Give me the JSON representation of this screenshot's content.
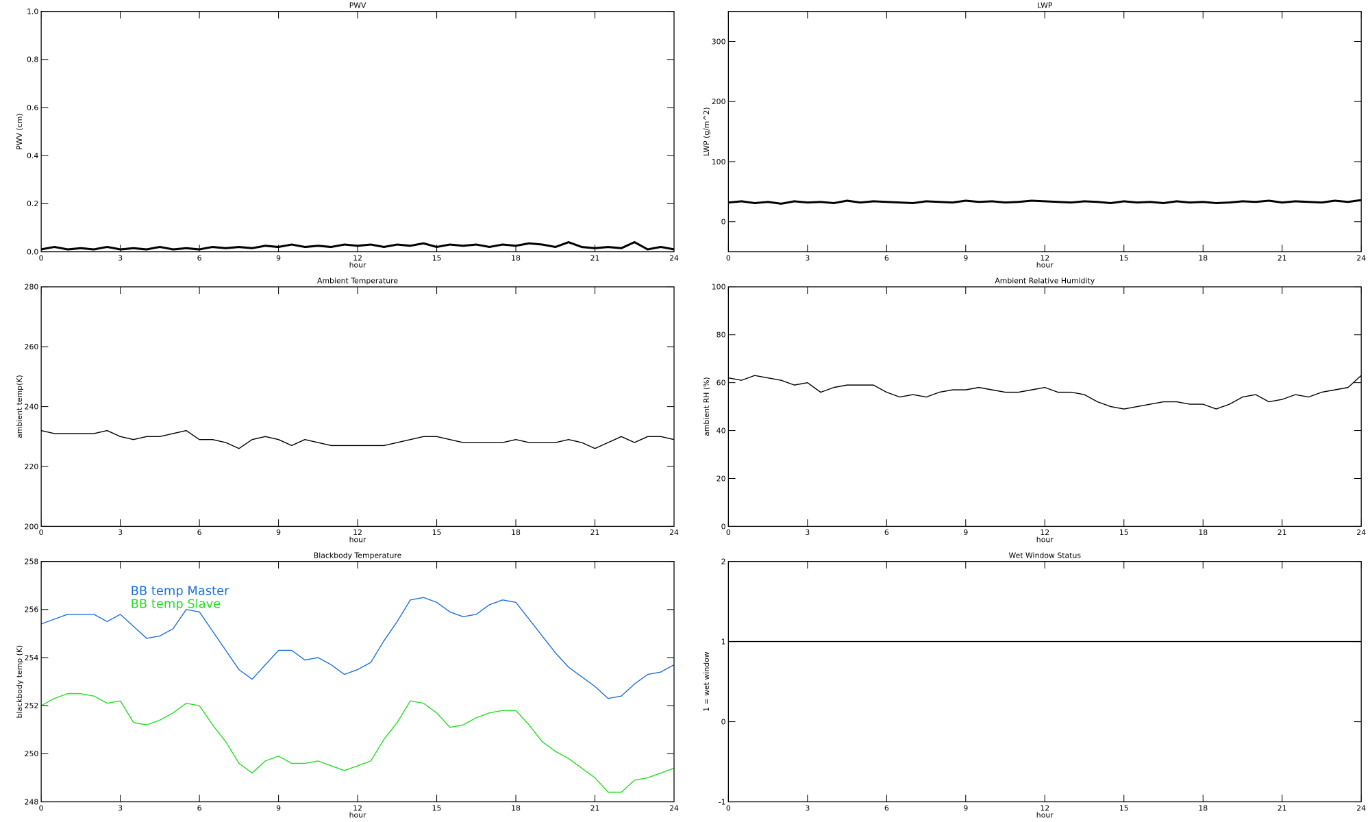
{
  "chart_data": [
    {
      "type": "line",
      "title": "PWV",
      "xlabel": "hour",
      "ylabel": "PWV (cm)",
      "xlim": [
        0,
        24
      ],
      "xticks": [
        0,
        3,
        6,
        9,
        12,
        15,
        18,
        21,
        24
      ],
      "ylim": [
        0,
        1
      ],
      "yticks": [
        {
          "value": 0,
          "label": "0.0"
        },
        {
          "value": 0.2,
          "label": "0.2"
        },
        {
          "value": 0.4,
          "label": "0.4"
        },
        {
          "value": 0.6,
          "label": "0.6"
        },
        {
          "value": 0.8,
          "label": "0.8"
        },
        {
          "value": 1,
          "label": "1.0"
        }
      ],
      "x": [
        0,
        0.5,
        1,
        1.5,
        2,
        2.5,
        3,
        3.5,
        4,
        4.5,
        5,
        5.5,
        6,
        6.5,
        7,
        7.5,
        8,
        8.5,
        9,
        9.5,
        10,
        10.5,
        11,
        11.5,
        12,
        12.5,
        13,
        13.5,
        14,
        14.5,
        15,
        15.5,
        16,
        16.5,
        17,
        17.5,
        18,
        18.5,
        19,
        19.5,
        20,
        20.5,
        21,
        21.5,
        22,
        22.5,
        23,
        23.5,
        24
      ],
      "series": [
        {
          "color": "#000000",
          "values": [
            0.01,
            0.02,
            0.01,
            0.015,
            0.01,
            0.02,
            0.01,
            0.015,
            0.01,
            0.02,
            0.01,
            0.015,
            0.01,
            0.02,
            0.015,
            0.02,
            0.015,
            0.025,
            0.02,
            0.03,
            0.02,
            0.025,
            0.02,
            0.03,
            0.025,
            0.03,
            0.02,
            0.03,
            0.025,
            0.035,
            0.02,
            0.03,
            0.025,
            0.03,
            0.02,
            0.03,
            0.025,
            0.035,
            0.03,
            0.02,
            0.04,
            0.02,
            0.015,
            0.02,
            0.015,
            0.04,
            0.01,
            0.02,
            0.01
          ]
        }
      ]
    },
    {
      "type": "line",
      "title": "LWP",
      "xlabel": "hour",
      "ylabel": "LWP (g/m^2)",
      "xlim": [
        0,
        24
      ],
      "xticks": [
        0,
        3,
        6,
        9,
        12,
        15,
        18,
        21,
        24
      ],
      "ylim": [
        -50,
        350
      ],
      "yticks": [
        0,
        100,
        200,
        300
      ],
      "x": [
        0,
        0.5,
        1,
        1.5,
        2,
        2.5,
        3,
        3.5,
        4,
        4.5,
        5,
        5.5,
        6,
        6.5,
        7,
        7.5,
        8,
        8.5,
        9,
        9.5,
        10,
        10.5,
        11,
        11.5,
        12,
        12.5,
        13,
        13.5,
        14,
        14.5,
        15,
        15.5,
        16,
        16.5,
        17,
        17.5,
        18,
        18.5,
        19,
        19.5,
        20,
        20.5,
        21,
        21.5,
        22,
        22.5,
        23,
        23.5,
        24
      ],
      "series": [
        {
          "color": "#000000",
          "values": [
            32,
            34,
            31,
            33,
            30,
            34,
            32,
            33,
            31,
            35,
            32,
            34,
            33,
            32,
            31,
            34,
            33,
            32,
            35,
            33,
            34,
            32,
            33,
            35,
            34,
            33,
            32,
            34,
            33,
            31,
            34,
            32,
            33,
            31,
            34,
            32,
            33,
            31,
            32,
            34,
            33,
            35,
            32,
            34,
            33,
            32,
            35,
            33,
            36
          ]
        }
      ]
    },
    {
      "type": "line",
      "title": "Ambient Temperature",
      "xlabel": "hour",
      "ylabel": "ambient temp(K)",
      "xlim": [
        0,
        24
      ],
      "xticks": [
        0,
        3,
        6,
        9,
        12,
        15,
        18,
        21,
        24
      ],
      "ylim": [
        200,
        280
      ],
      "yticks": [
        200,
        220,
        240,
        260,
        280
      ],
      "x": [
        0,
        0.5,
        1,
        1.5,
        2,
        2.5,
        3,
        3.5,
        4,
        4.5,
        5,
        5.5,
        6,
        6.5,
        7,
        7.5,
        8,
        8.5,
        9,
        9.5,
        10,
        10.5,
        11,
        11.5,
        12,
        12.5,
        13,
        13.5,
        14,
        14.5,
        15,
        15.5,
        16,
        16.5,
        17,
        17.5,
        18,
        18.5,
        19,
        19.5,
        20,
        20.5,
        21,
        21.5,
        22,
        22.5,
        23,
        23.5,
        24
      ],
      "series": [
        {
          "color": "#000000",
          "values": [
            232,
            231,
            231,
            231,
            231,
            232,
            230,
            229,
            230,
            230,
            231,
            232,
            229,
            229,
            228,
            226,
            229,
            230,
            229,
            227,
            229,
            228,
            227,
            227,
            227,
            227,
            227,
            228,
            229,
            230,
            230,
            229,
            228,
            228,
            228,
            228,
            229,
            228,
            228,
            228,
            229,
            228,
            226,
            228,
            230,
            228,
            230,
            230,
            229
          ]
        }
      ]
    },
    {
      "type": "line",
      "title": "Ambient Relative Humidity",
      "xlabel": "hour",
      "ylabel": "ambient RH (%)",
      "xlim": [
        0,
        24
      ],
      "xticks": [
        0,
        3,
        6,
        9,
        12,
        15,
        18,
        21,
        24
      ],
      "ylim": [
        0,
        100
      ],
      "yticks": [
        0,
        20,
        40,
        60,
        80,
        100
      ],
      "x": [
        0,
        0.5,
        1,
        1.5,
        2,
        2.5,
        3,
        3.5,
        4,
        4.5,
        5,
        5.5,
        6,
        6.5,
        7,
        7.5,
        8,
        8.5,
        9,
        9.5,
        10,
        10.5,
        11,
        11.5,
        12,
        12.5,
        13,
        13.5,
        14,
        14.5,
        15,
        15.5,
        16,
        16.5,
        17,
        17.5,
        18,
        18.5,
        19,
        19.5,
        20,
        20.5,
        21,
        21.5,
        22,
        22.5,
        23,
        23.5,
        24
      ],
      "series": [
        {
          "color": "#000000",
          "values": [
            62,
            61,
            63,
            62,
            61,
            59,
            60,
            56,
            58,
            59,
            59,
            59,
            56,
            54,
            55,
            54,
            56,
            57,
            57,
            58,
            57,
            56,
            56,
            57,
            58,
            56,
            56,
            55,
            52,
            50,
            49,
            50,
            51,
            52,
            52,
            51,
            51,
            49,
            51,
            54,
            55,
            52,
            53,
            55,
            54,
            56,
            57,
            58,
            63
          ]
        }
      ]
    },
    {
      "type": "line",
      "title": "Blackbody Temperature",
      "xlabel": "hour",
      "ylabel": "blackbody temp (K)",
      "xlim": [
        0,
        24
      ],
      "xticks": [
        0,
        3,
        6,
        9,
        12,
        15,
        18,
        21,
        24
      ],
      "ylim": [
        248,
        258
      ],
      "yticks": [
        248,
        250,
        252,
        254,
        256,
        258
      ],
      "legend": "upper left",
      "x": [
        0,
        0.5,
        1,
        1.5,
        2,
        2.5,
        3,
        3.5,
        4,
        4.5,
        5,
        5.5,
        6,
        6.5,
        7,
        7.5,
        8,
        8.5,
        9,
        9.5,
        10,
        10.5,
        11,
        11.5,
        12,
        12.5,
        13,
        13.5,
        14,
        14.5,
        15,
        15.5,
        16,
        16.5,
        17,
        17.5,
        18,
        18.5,
        19,
        19.5,
        20,
        20.5,
        21,
        21.5,
        22,
        22.5,
        23,
        23.5,
        24
      ],
      "series": [
        {
          "name": "BB temp Master",
          "color": "#1f6fe0",
          "values": [
            255.4,
            255.6,
            255.8,
            255.8,
            255.8,
            255.5,
            255.8,
            255.3,
            254.8,
            254.9,
            255.2,
            256.0,
            255.9,
            255.1,
            254.3,
            253.5,
            253.1,
            253.7,
            254.3,
            254.3,
            253.9,
            254.0,
            253.7,
            253.3,
            253.5,
            253.8,
            254.7,
            255.5,
            256.4,
            256.5,
            256.3,
            255.9,
            255.7,
            255.8,
            256.2,
            256.4,
            256.3,
            255.6,
            254.9,
            254.2,
            253.6,
            253.2,
            252.8,
            252.3,
            252.4,
            252.9,
            253.3,
            253.4,
            253.7
          ]
        },
        {
          "name": "BB temp Slave",
          "color": "#22e022",
          "values": [
            252.0,
            252.3,
            252.5,
            252.5,
            252.4,
            252.1,
            252.2,
            251.3,
            251.2,
            251.4,
            251.7,
            252.1,
            252.0,
            251.2,
            250.5,
            249.6,
            249.2,
            249.7,
            249.9,
            249.6,
            249.6,
            249.7,
            249.5,
            249.3,
            249.5,
            249.7,
            250.6,
            251.3,
            252.2,
            252.1,
            251.7,
            251.1,
            251.2,
            251.5,
            251.7,
            251.8,
            251.8,
            251.2,
            250.5,
            250.1,
            249.8,
            249.4,
            249.0,
            248.4,
            248.4,
            248.9,
            249.0,
            249.2,
            249.4
          ]
        }
      ]
    },
    {
      "type": "line",
      "title": "Wet Window Status",
      "xlabel": "hour",
      "ylabel": "1 = wet window",
      "xlim": [
        0,
        24
      ],
      "xticks": [
        0,
        3,
        6,
        9,
        12,
        15,
        18,
        21,
        24
      ],
      "ylim": [
        -1,
        2
      ],
      "yticks": [
        -1,
        0,
        1,
        2
      ],
      "x": [
        0,
        24
      ],
      "series": [
        {
          "color": "#000000",
          "values": [
            1,
            1
          ]
        }
      ]
    }
  ]
}
